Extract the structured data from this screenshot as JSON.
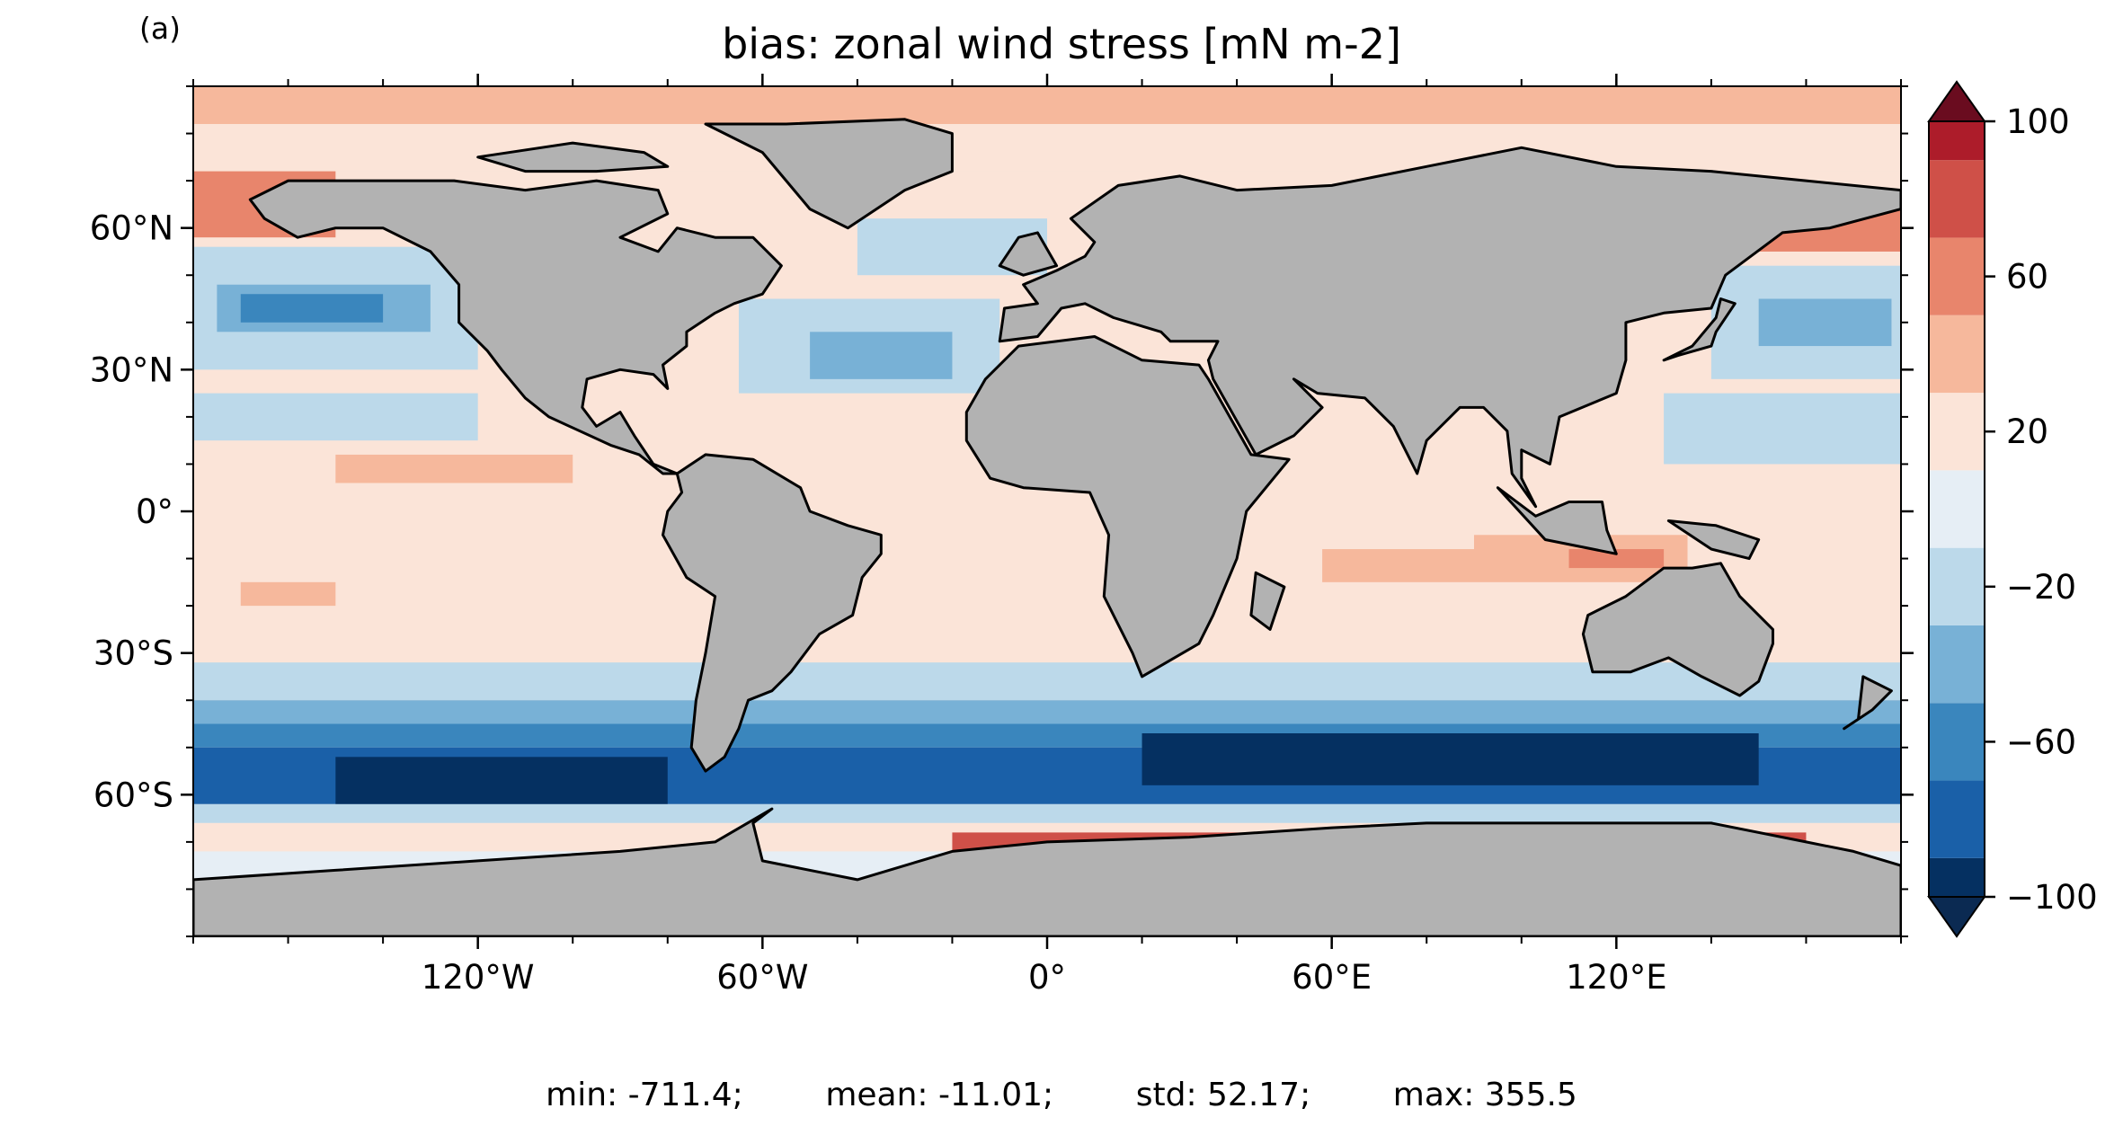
{
  "panel_label": "(a)",
  "title": "bias: zonal wind stress [mN m-2]",
  "axes": {
    "lon_ticks": [
      {
        "lon": -120,
        "label": "120°W"
      },
      {
        "lon": -60,
        "label": "60°W"
      },
      {
        "lon": 0,
        "label": "0°"
      },
      {
        "lon": 60,
        "label": "60°E"
      },
      {
        "lon": 120,
        "label": "120°E"
      }
    ],
    "lat_ticks": [
      {
        "lat": 60,
        "label": "60°N"
      },
      {
        "lat": 30,
        "label": "30°N"
      },
      {
        "lat": 0,
        "label": "0°"
      },
      {
        "lat": -30,
        "label": "30°S"
      },
      {
        "lat": -60,
        "label": "60°S"
      }
    ],
    "lon_range": [
      -180,
      180
    ],
    "lat_range": [
      -90,
      90
    ]
  },
  "colorbar": {
    "ticks": [
      {
        "value": 100,
        "label": "100"
      },
      {
        "value": 60,
        "label": "60"
      },
      {
        "value": 20,
        "label": "20"
      },
      {
        "value": -20,
        "label": "−20"
      },
      {
        "value": -60,
        "label": "−60"
      },
      {
        "value": -100,
        "label": "−100"
      }
    ],
    "levels": [
      -100,
      -90,
      -70,
      -50,
      -30,
      -10,
      10,
      30,
      50,
      70,
      90,
      100
    ],
    "colors": [
      "#053061",
      "#1a60a8",
      "#3a86bd",
      "#78b1d6",
      "#bcd9ea",
      "#e6eef5",
      "#fbe4d8",
      "#f6b89c",
      "#e8856c",
      "#cf5048",
      "#ad1c2a"
    ],
    "extend_low_color": "#0b2a52",
    "extend_high_color": "#6a0c1f"
  },
  "colors": {
    "land": "#b2b2b2",
    "ocean_background": "#fbe4d8",
    "coastline": "#000000"
  },
  "stats": {
    "min": "min: -711.4;",
    "mean": "mean: -11.01;",
    "std": "std: 52.17;",
    "max": "max: 355.5"
  }
}
